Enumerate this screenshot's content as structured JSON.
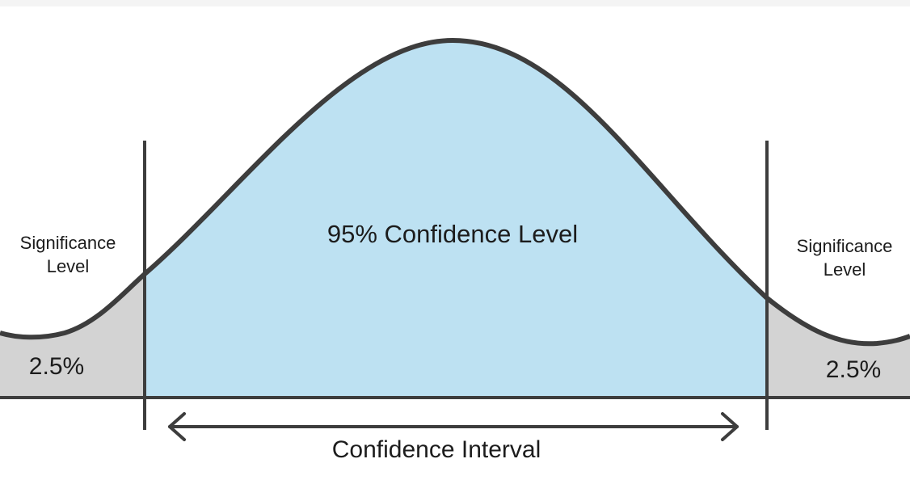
{
  "diagram": {
    "center_label": "95% Confidence Level",
    "left_tail": {
      "label": "Significance\nLevel",
      "value": "2.5%"
    },
    "right_tail": {
      "label": "Significance\nLevel",
      "value": "2.5%"
    },
    "interval_label": "Confidence Interval",
    "colors": {
      "center_fill": "#bde1f2",
      "tail_fill": "#d3d3d3",
      "stroke": "#3d3d3d"
    }
  }
}
